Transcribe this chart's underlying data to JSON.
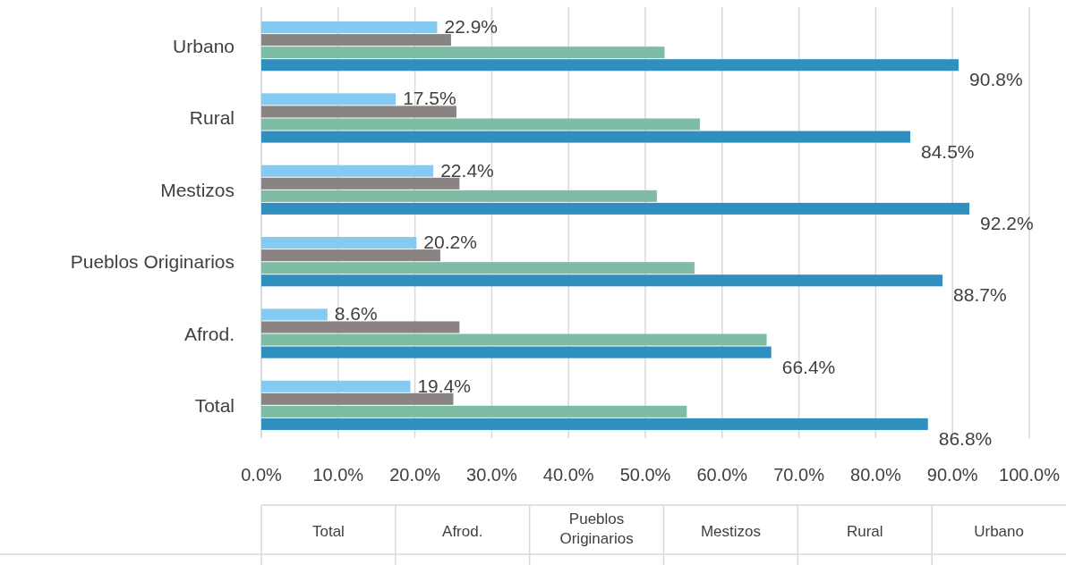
{
  "chart_data": {
    "type": "bar",
    "orientation": "horizontal",
    "categories": [
      "Urbano",
      "Rural",
      "Mestizos",
      "Pueblos Originarios",
      "Afrod.",
      "Total"
    ],
    "series": [
      {
        "color": "#85caf0",
        "values": [
          22.9,
          17.5,
          22.4,
          20.2,
          8.6,
          19.4
        ],
        "value_labels": [
          "22.9%",
          "17.5%",
          "22.4%",
          "20.2%",
          "8.6%",
          "19.4%"
        ]
      },
      {
        "color": "#898481",
        "values": [
          24.7,
          25.4,
          25.8,
          23.3,
          25.8,
          25.0
        ]
      },
      {
        "color": "#7fbca6",
        "values": [
          52.5,
          57.1,
          51.5,
          56.4,
          65.8,
          55.4
        ]
      },
      {
        "color": "#2f8fbe",
        "values": [
          90.8,
          84.5,
          92.2,
          88.7,
          66.4,
          86.8
        ],
        "value_labels": [
          "90.8%",
          "84.5%",
          "92.2%",
          "88.7%",
          "66.4%",
          "86.8%"
        ]
      }
    ],
    "xlim": [
      0,
      100
    ],
    "xticks": [
      {
        "value": 0,
        "label": "0.0%"
      },
      {
        "value": 10,
        "label": "10.0%"
      },
      {
        "value": 20,
        "label": "20.0%"
      },
      {
        "value": 30,
        "label": "30.0%"
      },
      {
        "value": 40,
        "label": "40.0%"
      },
      {
        "value": 50,
        "label": "50.0%"
      },
      {
        "value": 60,
        "label": "60.0%"
      },
      {
        "value": 70,
        "label": "70.0%"
      },
      {
        "value": 80,
        "label": "80.0%"
      },
      {
        "value": 90,
        "label": "90.0%"
      },
      {
        "value": 100,
        "label": "100.0%"
      }
    ],
    "grid": "x"
  }
}
